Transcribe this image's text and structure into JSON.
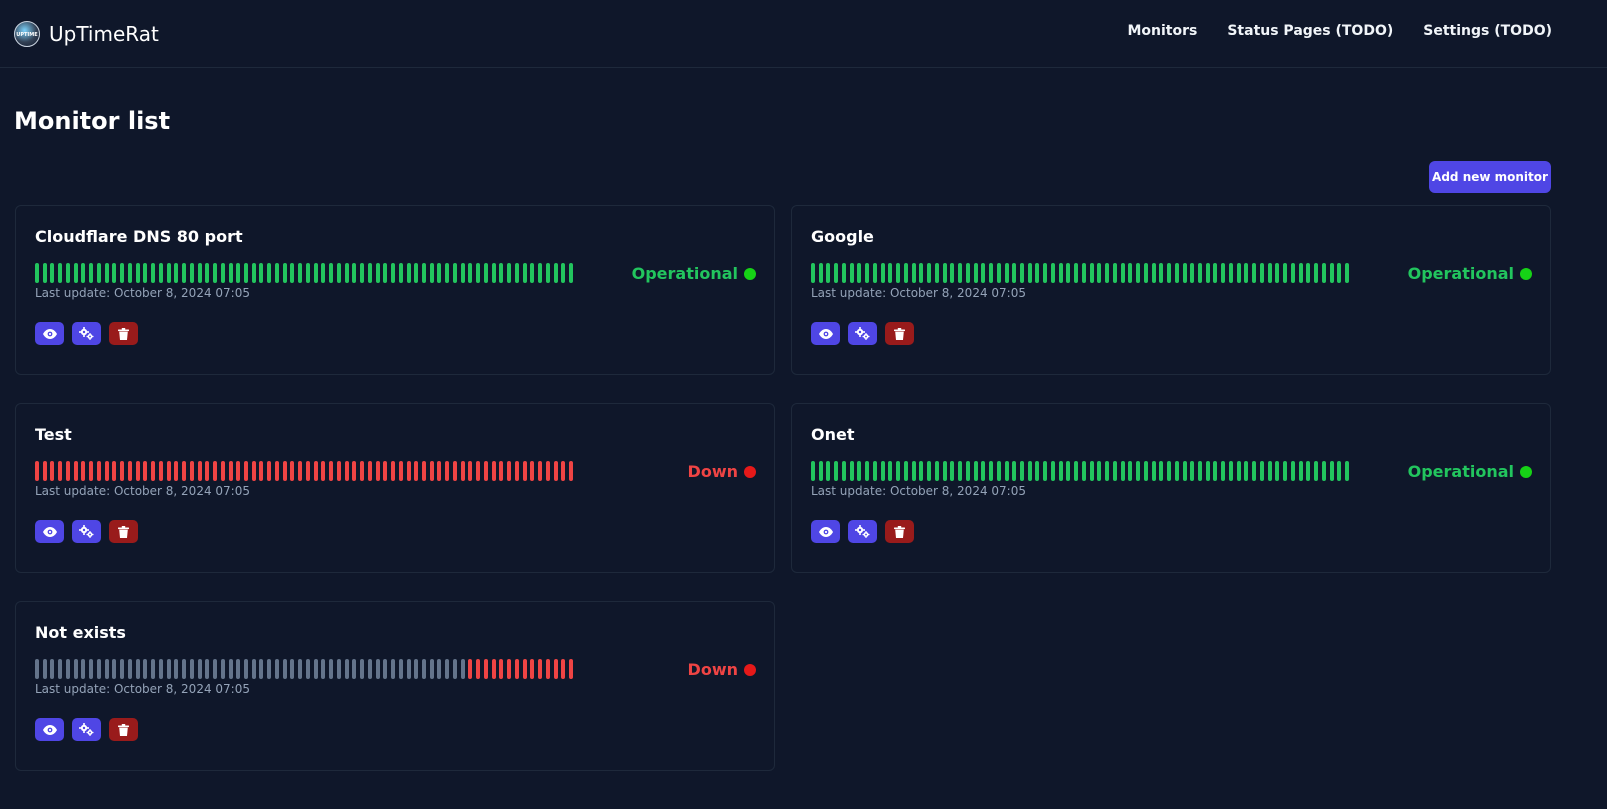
{
  "app": {
    "name": "UpTimeRat",
    "logo_text": "UPTIME"
  },
  "nav": {
    "items": [
      {
        "label": "Monitors"
      },
      {
        "label": "Status Pages (TODO)"
      },
      {
        "label": "Settings (TODO)"
      }
    ]
  },
  "page": {
    "title": "Monitor list",
    "add_button_label": "Add new monitor"
  },
  "colors": {
    "background": "#0f172a",
    "accent": "#4f46e5",
    "danger_button": "#991b1b",
    "up": "#22c55e",
    "down": "#ef4444",
    "unknown": "#64748b",
    "dot_up": "#16d216",
    "dot_down": "#e61919"
  },
  "monitors": [
    {
      "name": "Cloudflare DNS 80 port",
      "status": "Operational",
      "status_type": "up",
      "last_update": "Last update: October 8, 2024 07:05",
      "heartbeats": [
        "up",
        "up",
        "up",
        "up",
        "up",
        "up",
        "up",
        "up",
        "up",
        "up",
        "up",
        "up",
        "up",
        "up",
        "up",
        "up",
        "up",
        "up",
        "up",
        "up",
        "up",
        "up",
        "up",
        "up",
        "up",
        "up",
        "up",
        "up",
        "up",
        "up",
        "up",
        "up",
        "up",
        "up",
        "up",
        "up",
        "up",
        "up",
        "up",
        "up",
        "up",
        "up",
        "up",
        "up",
        "up",
        "up",
        "up",
        "up",
        "up",
        "up",
        "up",
        "up",
        "up",
        "up",
        "up",
        "up",
        "up",
        "up",
        "up",
        "up",
        "up",
        "up",
        "up",
        "up",
        "up",
        "up",
        "up",
        "up",
        "up",
        "up"
      ]
    },
    {
      "name": "Google",
      "status": "Operational",
      "status_type": "up",
      "last_update": "Last update: October 8, 2024 07:05",
      "heartbeats": [
        "up",
        "up",
        "up",
        "up",
        "up",
        "up",
        "up",
        "up",
        "up",
        "up",
        "up",
        "up",
        "up",
        "up",
        "up",
        "up",
        "up",
        "up",
        "up",
        "up",
        "up",
        "up",
        "up",
        "up",
        "up",
        "up",
        "up",
        "up",
        "up",
        "up",
        "up",
        "up",
        "up",
        "up",
        "up",
        "up",
        "up",
        "up",
        "up",
        "up",
        "up",
        "up",
        "up",
        "up",
        "up",
        "up",
        "up",
        "up",
        "up",
        "up",
        "up",
        "up",
        "up",
        "up",
        "up",
        "up",
        "up",
        "up",
        "up",
        "up",
        "up",
        "up",
        "up",
        "up",
        "up",
        "up",
        "up",
        "up",
        "up",
        "up"
      ]
    },
    {
      "name": "Test",
      "status": "Down",
      "status_type": "down",
      "last_update": "Last update: October 8, 2024 07:05",
      "heartbeats": [
        "down",
        "down",
        "down",
        "down",
        "down",
        "down",
        "down",
        "down",
        "down",
        "down",
        "down",
        "down",
        "down",
        "down",
        "down",
        "down",
        "down",
        "down",
        "down",
        "down",
        "down",
        "down",
        "down",
        "down",
        "down",
        "down",
        "down",
        "down",
        "down",
        "down",
        "down",
        "down",
        "down",
        "down",
        "down",
        "down",
        "down",
        "down",
        "down",
        "down",
        "down",
        "down",
        "down",
        "down",
        "down",
        "down",
        "down",
        "down",
        "down",
        "down",
        "down",
        "down",
        "down",
        "down",
        "down",
        "down",
        "down",
        "down",
        "down",
        "down",
        "down",
        "down",
        "down",
        "down",
        "down",
        "down",
        "down",
        "down",
        "down",
        "down"
      ]
    },
    {
      "name": "Onet",
      "status": "Operational",
      "status_type": "up",
      "last_update": "Last update: October 8, 2024 07:05",
      "heartbeats": [
        "up",
        "up",
        "up",
        "up",
        "up",
        "up",
        "up",
        "up",
        "up",
        "up",
        "up",
        "up",
        "up",
        "up",
        "up",
        "up",
        "up",
        "up",
        "up",
        "up",
        "up",
        "up",
        "up",
        "up",
        "up",
        "up",
        "up",
        "up",
        "up",
        "up",
        "up",
        "up",
        "up",
        "up",
        "up",
        "up",
        "up",
        "up",
        "up",
        "up",
        "up",
        "up",
        "up",
        "up",
        "up",
        "up",
        "up",
        "up",
        "up",
        "up",
        "up",
        "up",
        "up",
        "up",
        "up",
        "up",
        "up",
        "up",
        "up",
        "up",
        "up",
        "up",
        "up",
        "up",
        "up",
        "up",
        "up",
        "up",
        "up",
        "up"
      ]
    },
    {
      "name": "Not exists",
      "status": "Down",
      "status_type": "down",
      "last_update": "Last update: October 8, 2024 07:05",
      "heartbeats": [
        "unknown",
        "unknown",
        "unknown",
        "unknown",
        "unknown",
        "unknown",
        "unknown",
        "unknown",
        "unknown",
        "unknown",
        "unknown",
        "unknown",
        "unknown",
        "unknown",
        "unknown",
        "unknown",
        "unknown",
        "unknown",
        "unknown",
        "unknown",
        "unknown",
        "unknown",
        "unknown",
        "unknown",
        "unknown",
        "unknown",
        "unknown",
        "unknown",
        "unknown",
        "unknown",
        "unknown",
        "unknown",
        "unknown",
        "unknown",
        "unknown",
        "unknown",
        "unknown",
        "unknown",
        "unknown",
        "unknown",
        "unknown",
        "unknown",
        "unknown",
        "unknown",
        "unknown",
        "unknown",
        "unknown",
        "unknown",
        "unknown",
        "unknown",
        "unknown",
        "unknown",
        "unknown",
        "unknown",
        "unknown",
        "unknown",
        "down",
        "down",
        "down",
        "down",
        "down",
        "down",
        "down",
        "down",
        "down",
        "down",
        "down",
        "down",
        "down",
        "down"
      ]
    }
  ],
  "actions": [
    {
      "icon": "eye-icon",
      "name": "view-button",
      "style": "primary"
    },
    {
      "icon": "gears-icon",
      "name": "settings-button",
      "style": "primary"
    },
    {
      "icon": "trash-icon",
      "name": "delete-button",
      "style": "danger"
    }
  ]
}
